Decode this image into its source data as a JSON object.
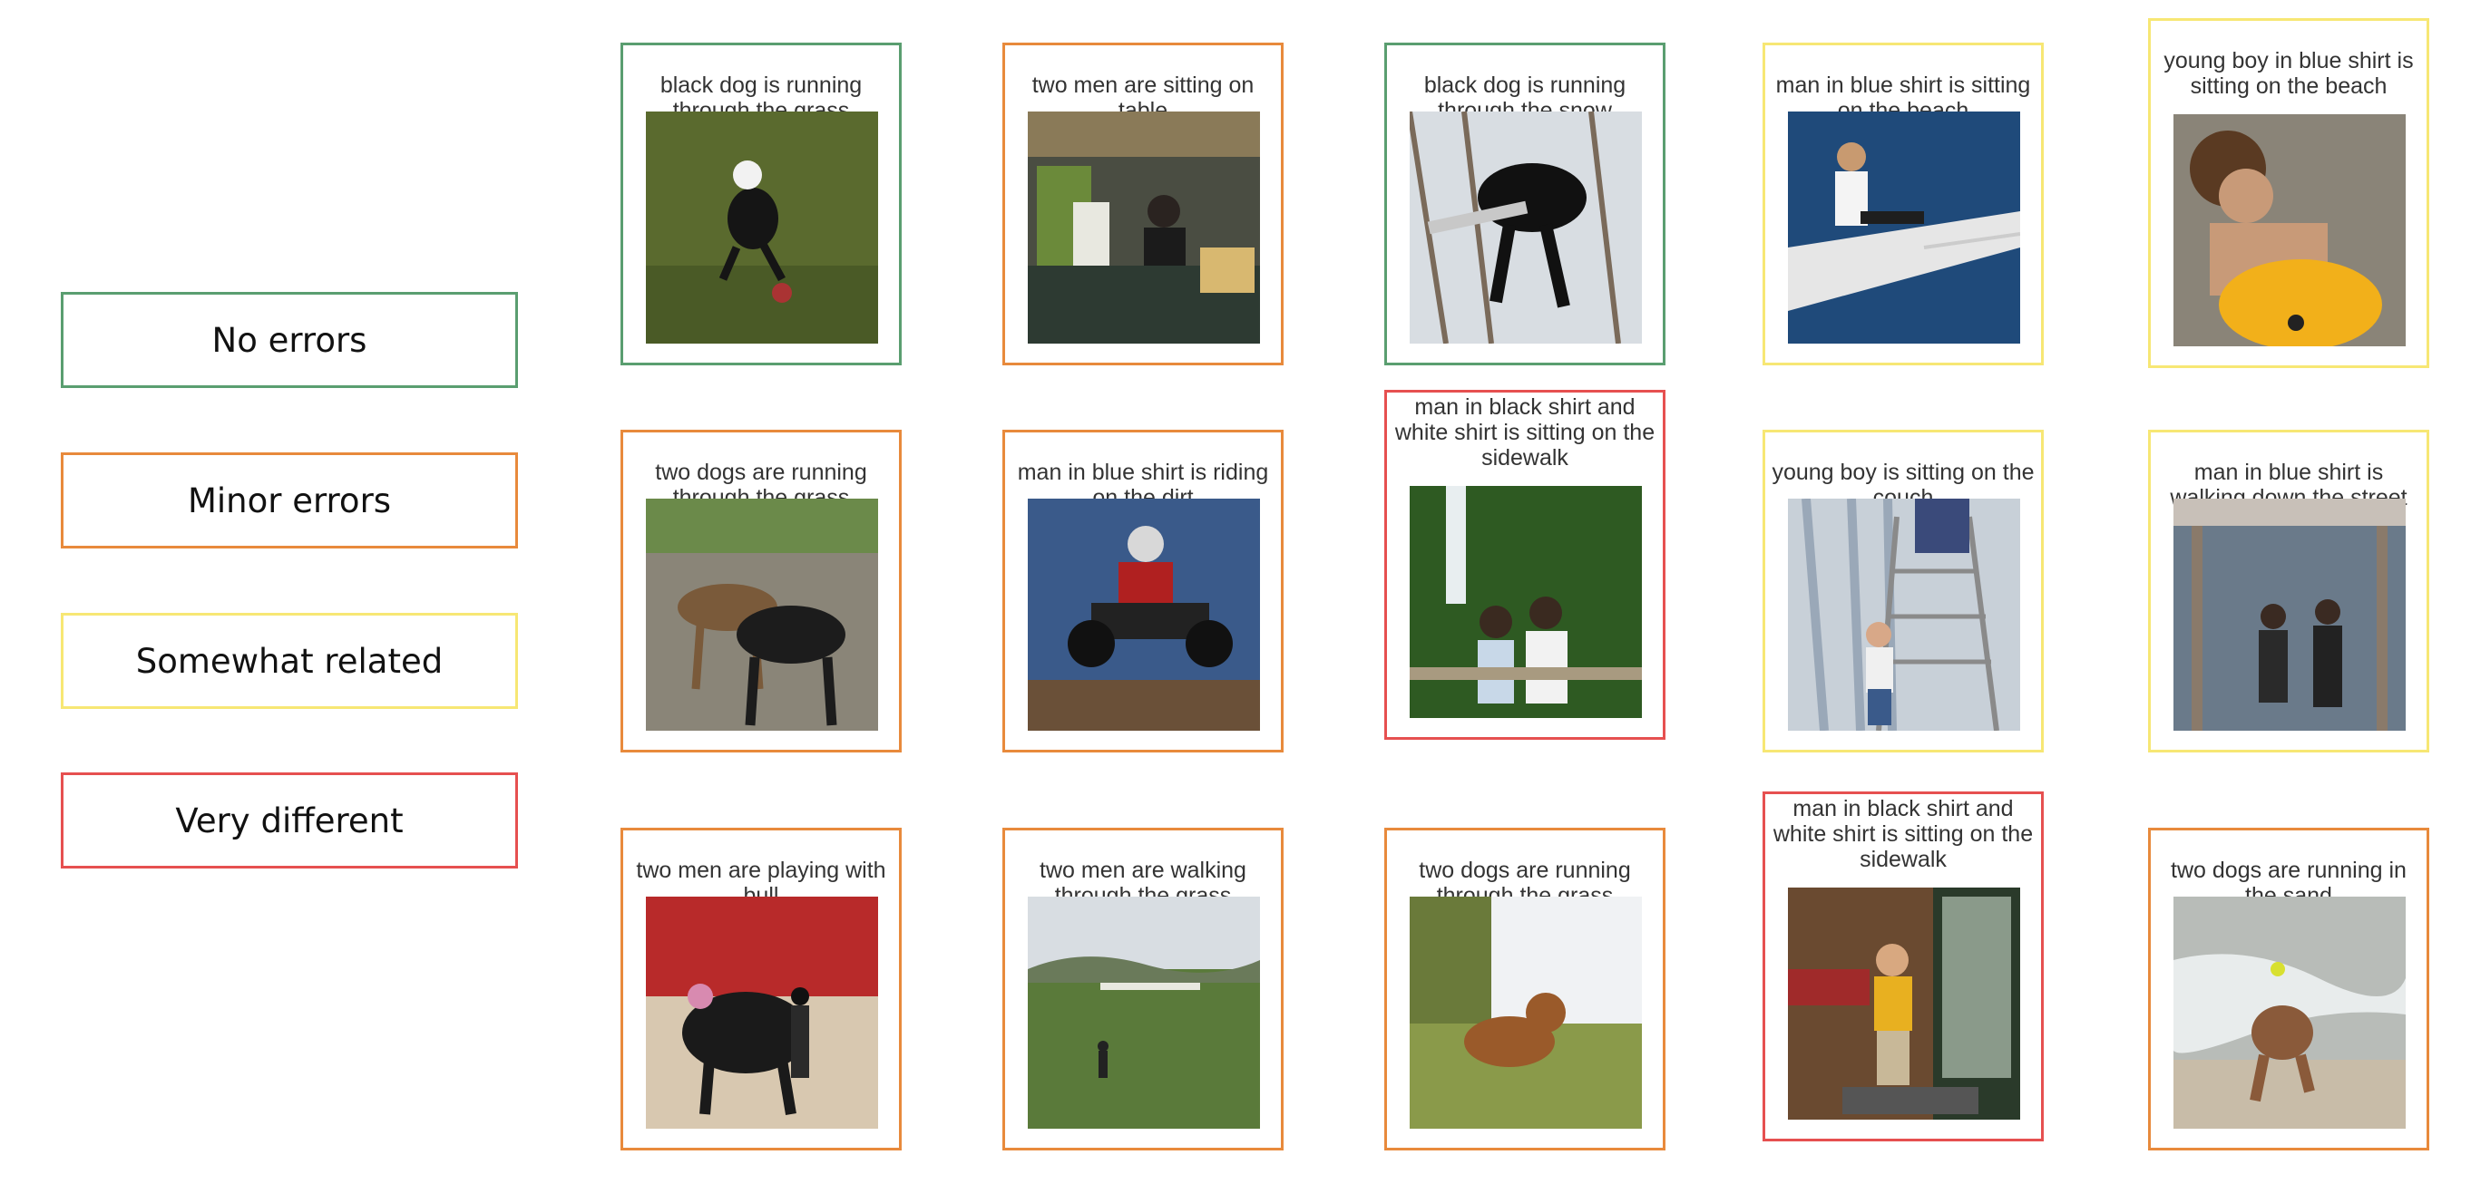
{
  "legend": [
    {
      "label": "No errors",
      "color": "#5a9e70"
    },
    {
      "label": "Minor errors",
      "color": "#e88a3c"
    },
    {
      "label": "Somewhat related",
      "color": "#f7e774"
    },
    {
      "label": "Very different",
      "color": "#e65050"
    }
  ],
  "cards": [
    {
      "caption": "black dog is running through the grass",
      "rating": "No errors",
      "image": "black dog leaping on grass with a frisbee"
    },
    {
      "caption": "two men are sitting on table",
      "rating": "Minor errors",
      "image": "person behind a market stall with plants"
    },
    {
      "caption": "black dog is running through the snow",
      "rating": "No errors",
      "image": "black dog carrying a stick in snow"
    },
    {
      "caption": "man in blue shirt is sitting on the beach",
      "rating": "Somewhat related",
      "image": "woman sitting in a rowing boat on water"
    },
    {
      "caption": "young boy in blue shirt is sitting on the beach",
      "rating": "Somewhat related",
      "image": "child with a yellow float at the sea"
    },
    {
      "caption": "two dogs are running through the grass",
      "rating": "Minor errors",
      "image": "two dogs on a gravel path"
    },
    {
      "caption": "man in blue shirt is riding on the dirt",
      "rating": "Minor errors",
      "image": "rider jumping a quad bike"
    },
    {
      "caption": "man in black shirt and white shirt is sitting on the sidewalk",
      "rating": "Very different",
      "image": "couple posing in front of a waterfall"
    },
    {
      "caption": "young boy is sitting on the couch",
      "rating": "Somewhat related",
      "image": "child climbing a ladder by curtains"
    },
    {
      "caption": "man in blue shirt is walking down the street",
      "rating": "Somewhat related",
      "image": "two people in a glass shelter"
    },
    {
      "caption": "two men are playing with bull",
      "rating": "Minor errors",
      "image": "rodeo bull with riders"
    },
    {
      "caption": "two men are walking through the grass",
      "rating": "Minor errors",
      "image": "person standing in a field"
    },
    {
      "caption": "two dogs are running through the grass",
      "rating": "Minor errors",
      "image": "brown dog in grass"
    },
    {
      "caption": "man in black shirt and white shirt is sitting on the sidewalk",
      "rating": "Very different",
      "image": "boy throwing something in a doorway"
    },
    {
      "caption": "two dogs are running in the sand",
      "rating": "Minor errors",
      "image": "curly dog leaping at the beach"
    }
  ]
}
